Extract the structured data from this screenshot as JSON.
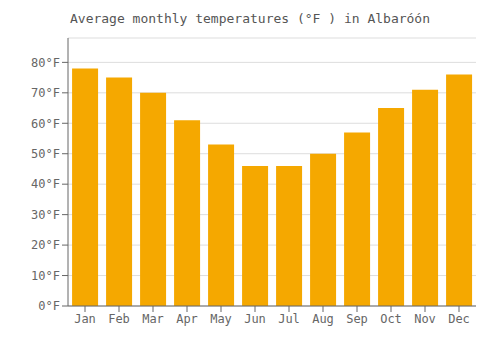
{
  "chart_data": {
    "type": "bar",
    "title": "Average monthly temperatures (°F ) in Albaróón",
    "categories": [
      "Jan",
      "Feb",
      "Mar",
      "Apr",
      "May",
      "Jun",
      "Jul",
      "Aug",
      "Sep",
      "Oct",
      "Nov",
      "Dec"
    ],
    "values": [
      78,
      75,
      70,
      61,
      53,
      46,
      46,
      50,
      57,
      65,
      71,
      76
    ],
    "color": "#F5A800",
    "ylim": [
      0,
      88
    ],
    "yticks": [
      {
        "value": 0,
        "label": "0°F"
      },
      {
        "value": 10,
        "label": "10°F"
      },
      {
        "value": 20,
        "label": "20°F"
      },
      {
        "value": 30,
        "label": "30°F"
      },
      {
        "value": 40,
        "label": "40°F"
      },
      {
        "value": 50,
        "label": "50°F"
      },
      {
        "value": 60,
        "label": "60°F"
      },
      {
        "value": 70,
        "label": "70°F"
      },
      {
        "value": 80,
        "label": "80°F"
      }
    ],
    "grid": true
  }
}
